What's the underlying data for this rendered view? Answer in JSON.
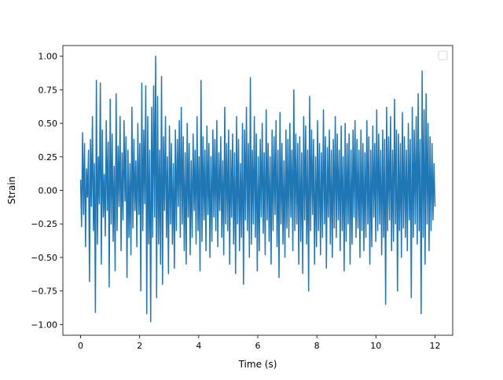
{
  "chart_data": {
    "type": "line",
    "title": "",
    "xlabel": "Time (s)",
    "ylabel": "Strain",
    "xlim": [
      -0.6,
      12.6
    ],
    "ylim": [
      -1.08,
      1.08
    ],
    "xticks": [
      0,
      2,
      4,
      6,
      8,
      10,
      12
    ],
    "xtick_labels": [
      "0",
      "2",
      "4",
      "6",
      "8",
      "10",
      "12"
    ],
    "yticks": [
      -1.0,
      -0.75,
      -0.5,
      -0.25,
      0.0,
      0.25,
      0.5,
      0.75,
      1.0
    ],
    "ytick_labels": [
      "−1.00",
      "−0.75",
      "−0.50",
      "−0.25",
      "0.00",
      "0.25",
      "0.50",
      "0.75",
      "1.00"
    ],
    "grid": false,
    "legend": {
      "placement": "top-right",
      "entries": []
    },
    "series": [
      {
        "color": "#1f77b4",
        "x_start": 0,
        "x_end": 12,
        "values": [
          0.08,
          -0.27,
          0.43,
          -0.18,
          0.35,
          -0.42,
          0.16,
          -0.05,
          0.3,
          -0.68,
          0.38,
          -0.12,
          0.55,
          -0.3,
          0.2,
          -0.91,
          0.82,
          -0.4,
          0.25,
          -0.1,
          0.8,
          -0.55,
          0.45,
          -0.2,
          0.12,
          -0.34,
          0.52,
          -0.15,
          0.36,
          -0.72,
          0.68,
          -0.25,
          0.42,
          -0.38,
          0.18,
          -0.6,
          0.72,
          -0.3,
          0.33,
          -0.12,
          0.55,
          -0.45,
          0.28,
          -0.22,
          0.52,
          -0.08,
          0.4,
          -0.65,
          0.3,
          -0.35,
          0.2,
          -0.48,
          0.62,
          -0.28,
          0.38,
          -0.15,
          0.22,
          -0.42,
          0.5,
          -0.18,
          0.35,
          -0.75,
          0.8,
          -0.3,
          0.45,
          -0.1,
          0.78,
          -0.92,
          0.55,
          -0.4,
          0.3,
          -0.98,
          0.62,
          -0.35,
          0.78,
          -0.2,
          1.0,
          -0.8,
          0.7,
          -0.4,
          0.3,
          -0.55,
          0.85,
          -0.7,
          0.4,
          -0.15,
          0.55,
          -0.35,
          0.25,
          -0.62,
          0.48,
          -0.25,
          0.35,
          -0.4,
          0.2,
          -0.58,
          0.45,
          -0.3,
          0.38,
          -0.12,
          0.52,
          -0.35,
          0.62,
          -0.25,
          0.4,
          -0.45,
          0.28,
          -0.55,
          0.5,
          -0.2,
          0.35,
          -0.48,
          0.22,
          -0.35,
          0.42,
          -0.15,
          0.3,
          -0.4,
          0.55,
          -0.3,
          0.25,
          -0.6,
          0.82,
          -0.38,
          0.4,
          -0.22,
          0.3,
          -0.45,
          0.48,
          -0.18,
          0.35,
          -0.5,
          0.25,
          -0.38,
          0.45,
          -0.2,
          0.38,
          -0.3,
          0.52,
          -0.42,
          0.28,
          -0.15,
          0.4,
          -0.35,
          0.22,
          -0.48,
          0.62,
          -0.25,
          0.35,
          -0.3,
          0.45,
          -0.55,
          0.3,
          -0.2,
          0.42,
          -0.4,
          0.28,
          -0.62,
          0.55,
          -0.25,
          0.38,
          -0.45,
          0.2,
          -0.35,
          0.5,
          -0.7,
          0.45,
          -0.22,
          0.62,
          -0.3,
          0.35,
          -0.5,
          0.84,
          -0.4,
          0.3,
          -0.25,
          0.55,
          -0.35,
          0.42,
          -0.6,
          0.25,
          -0.45,
          0.38,
          -0.2,
          0.5,
          -0.32,
          0.28,
          -0.48,
          0.6,
          -0.22,
          0.35,
          -0.38,
          0.25,
          -0.55,
          0.45,
          -0.3,
          0.4,
          -0.18,
          0.52,
          -0.42,
          0.3,
          -0.65,
          0.58,
          -0.25,
          0.35,
          -0.4,
          0.22,
          -0.5,
          0.45,
          -0.28,
          0.38,
          -0.35,
          0.5,
          -0.2,
          0.3,
          -0.45,
          0.75,
          -0.3,
          0.42,
          -0.25,
          0.35,
          -0.55,
          0.4,
          -0.38,
          0.28,
          -0.62,
          0.55,
          -0.22,
          0.48,
          -0.4,
          0.3,
          -0.75,
          0.7,
          -0.3,
          0.45,
          -0.18,
          0.38,
          -0.55,
          0.25,
          -0.42,
          0.52,
          -0.3,
          0.35,
          -0.48,
          0.28,
          -0.35,
          0.6,
          -0.25,
          0.4,
          -0.58,
          0.32,
          -0.2,
          0.45,
          -0.4,
          0.3,
          -0.5,
          0.38,
          -0.28,
          0.55,
          -0.35,
          0.42,
          -0.22,
          0.3,
          -0.45,
          0.48,
          -0.3,
          0.25,
          -0.6,
          0.5,
          -0.38,
          0.35,
          -0.25,
          0.42,
          -0.55,
          0.3,
          -0.4,
          0.45,
          -0.2,
          0.52,
          -0.35,
          0.38,
          -0.28,
          0.3,
          -0.5,
          0.45,
          -0.3,
          0.35,
          -0.45,
          0.28,
          -0.35,
          0.52,
          -0.25,
          0.4,
          -0.55,
          0.3,
          -0.42,
          0.48,
          -0.2,
          0.35,
          -0.38,
          0.6,
          -0.3,
          0.42,
          -0.25,
          0.3,
          -0.48,
          0.45,
          -0.35,
          0.38,
          -0.85,
          0.62,
          -0.3,
          0.4,
          -0.22,
          0.55,
          -0.45,
          0.3,
          -0.38,
          0.68,
          -0.25,
          0.45,
          -0.75,
          0.42,
          -0.3,
          0.35,
          -0.5,
          0.58,
          -0.28,
          0.4,
          -0.35,
          0.3,
          -0.45,
          0.5,
          -0.22,
          0.38,
          -0.8,
          0.62,
          -0.35,
          0.45,
          -0.25,
          0.55,
          -0.4,
          0.72,
          -0.3,
          0.38,
          -0.92,
          0.89,
          -0.35,
          0.6,
          -0.55,
          0.72,
          -0.25,
          0.5,
          -0.45,
          0.4,
          -0.3,
          0.35,
          -0.22,
          0.2,
          -0.12
        ]
      }
    ]
  }
}
